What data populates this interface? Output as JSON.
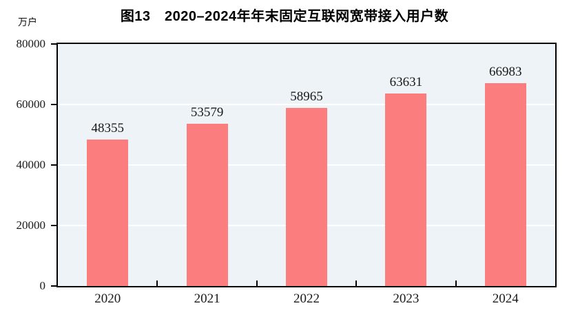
{
  "page": {
    "background": "#FFFFFF"
  },
  "header": {
    "title": "图13　2020–2024年年末固定互联网宽带接入用户数",
    "unit_label": "万户"
  },
  "chart_data": {
    "type": "bar",
    "title": "图13　2020–2024年年末固定互联网宽带接入用户数",
    "subtitle": "",
    "unit_label": "万户",
    "categories": [
      "2020",
      "2021",
      "2022",
      "2023",
      "2024"
    ],
    "values": [
      48355,
      53579,
      58965,
      63631,
      66983
    ],
    "data_labels": [
      "48355",
      "53579",
      "58965",
      "63631",
      "66983"
    ],
    "xlabel": "",
    "ylabel": "万户",
    "ylim": [
      0,
      80000
    ],
    "yticks": [
      0,
      20000,
      40000,
      60000,
      80000
    ],
    "ytick_labels": [
      "0",
      "20000",
      "40000",
      "60000",
      "80000"
    ],
    "grid": "horizontal gridlines at y ticks, white, on",
    "legend": "none",
    "colors": {
      "bar": "#FB7D7D",
      "plot_background": "#EDF3F7",
      "frame": "#000000",
      "gridline": "#FFFFFF",
      "text": "#1A1A1A"
    }
  }
}
